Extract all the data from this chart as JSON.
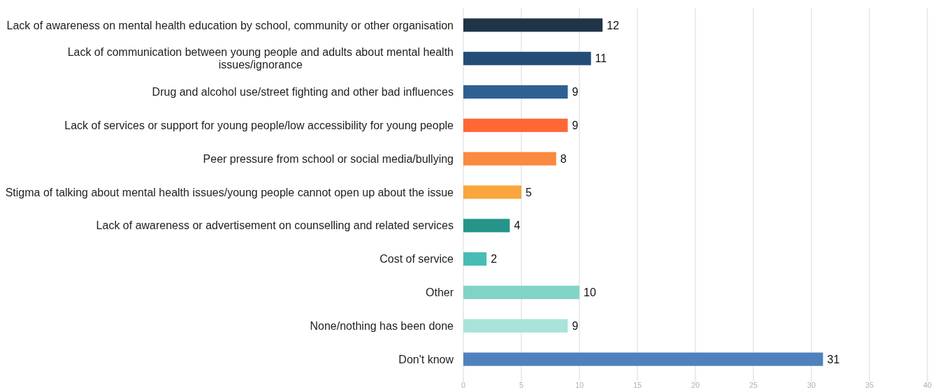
{
  "chart_data": {
    "type": "bar",
    "orientation": "horizontal",
    "categories": [
      "Lack of awareness on mental health education by school, community or other organisation",
      "Lack of communication between young people and adults about mental health issues/ignorance",
      "Drug and alcohol use/street fighting and other bad influences",
      "Lack of services or support for young people/low accessibility for young people",
      "Peer pressure from school or social media/bullying",
      "Stigma of talking about mental health issues/young people cannot open up about the issue",
      "Lack of awareness or advertisement on counselling and related services",
      "Cost of service",
      "Other",
      "None/nothing has been done",
      "Don't know"
    ],
    "values": [
      12,
      11,
      9,
      9,
      8,
      5,
      4,
      2,
      10,
      9,
      31
    ],
    "colors": [
      "#203448",
      "#234d77",
      "#2e6093",
      "#ff6836",
      "#f98a3f",
      "#f8a63d",
      "#25958a",
      "#47bcb4",
      "#82d3c7",
      "#a9e3d9",
      "#4f81bd"
    ],
    "xlim": [
      0,
      40
    ],
    "xticks": [
      0,
      5,
      10,
      15,
      20,
      25,
      30,
      35,
      40
    ],
    "grid": "x",
    "data_labels": true
  }
}
